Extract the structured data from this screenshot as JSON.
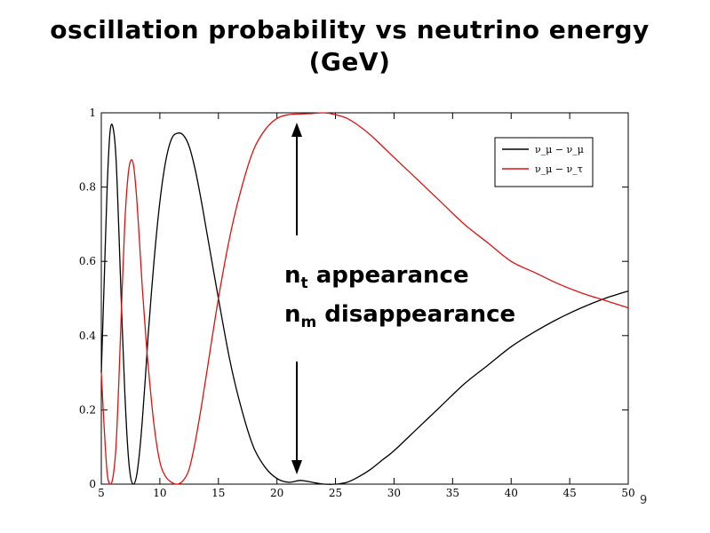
{
  "slide": {
    "title_line1": "oscillation probability vs neutrino energy",
    "title_line2": "(GeV)",
    "annotation_line1_main": "n",
    "annotation_line1_sub": "t",
    "annotation_line1_rest": " appearance",
    "annotation_line2_main": "n",
    "annotation_line2_sub": "m",
    "annotation_line2_rest": " disappearance",
    "page_number": "9"
  },
  "chart_data": {
    "type": "line",
    "title": "",
    "xlabel": "",
    "ylabel": "",
    "xlim": [
      5,
      50
    ],
    "ylim": [
      0,
      1
    ],
    "x_ticks": [
      5,
      10,
      15,
      20,
      25,
      30,
      35,
      40,
      45,
      50
    ],
    "y_ticks": [
      0,
      0.2,
      0.4,
      0.6,
      0.8,
      1
    ],
    "y_tick_labels": [
      "0",
      "0.2",
      "0.4",
      "0.6",
      "0.8",
      "1"
    ],
    "grid": false,
    "legend_position": "top-right",
    "series": [
      {
        "name": "ν_μ − ν_μ",
        "color": "#000000",
        "x": [
          5,
          5.25,
          5.5,
          5.75,
          6,
          6.25,
          6.5,
          6.75,
          7,
          7.25,
          7.5,
          7.75,
          8,
          8.25,
          8.5,
          8.75,
          9,
          9.5,
          10,
          10.5,
          11,
          11.5,
          12,
          12.5,
          13,
          13.5,
          14,
          15,
          16,
          17,
          18,
          19,
          20,
          21,
          22,
          23,
          24,
          25,
          26,
          27,
          28,
          29,
          30,
          32,
          34,
          36,
          38,
          40,
          42,
          44,
          46,
          48,
          50
        ],
        "y": [
          0.3,
          0.55,
          0.8,
          0.95,
          0.96,
          0.88,
          0.68,
          0.45,
          0.25,
          0.1,
          0.02,
          0.0,
          0.02,
          0.08,
          0.17,
          0.28,
          0.4,
          0.6,
          0.76,
          0.87,
          0.93,
          0.945,
          0.94,
          0.91,
          0.85,
          0.77,
          0.68,
          0.5,
          0.33,
          0.2,
          0.1,
          0.045,
          0.015,
          0.005,
          0.01,
          0.005,
          0.0,
          0.0,
          0.005,
          0.02,
          0.04,
          0.065,
          0.09,
          0.15,
          0.21,
          0.27,
          0.32,
          0.37,
          0.41,
          0.445,
          0.475,
          0.5,
          0.52
        ]
      },
      {
        "name": "ν_μ − ν_τ",
        "color": "#e01010",
        "x": [
          5,
          5.25,
          5.5,
          5.75,
          6,
          6.25,
          6.5,
          6.75,
          7,
          7.25,
          7.5,
          7.75,
          8,
          8.25,
          8.5,
          8.75,
          9,
          9.5,
          10,
          10.5,
          11,
          11.5,
          12,
          12.5,
          13,
          13.5,
          14,
          15,
          16,
          17,
          18,
          19,
          20,
          21,
          22,
          23,
          24,
          25,
          26,
          27,
          28,
          29,
          30,
          32,
          34,
          36,
          38,
          40,
          42,
          44,
          46,
          48,
          50
        ],
        "y": [
          0.3,
          0.15,
          0.03,
          0.0,
          0.02,
          0.1,
          0.28,
          0.5,
          0.7,
          0.82,
          0.87,
          0.86,
          0.78,
          0.66,
          0.53,
          0.42,
          0.32,
          0.16,
          0.06,
          0.02,
          0.005,
          0.0,
          0.01,
          0.04,
          0.11,
          0.2,
          0.3,
          0.5,
          0.67,
          0.8,
          0.9,
          0.955,
          0.985,
          0.995,
          0.997,
          0.998,
          1.0,
          0.995,
          0.985,
          0.965,
          0.94,
          0.91,
          0.88,
          0.82,
          0.76,
          0.7,
          0.65,
          0.6,
          0.57,
          0.54,
          0.515,
          0.495,
          0.475
        ]
      }
    ]
  }
}
